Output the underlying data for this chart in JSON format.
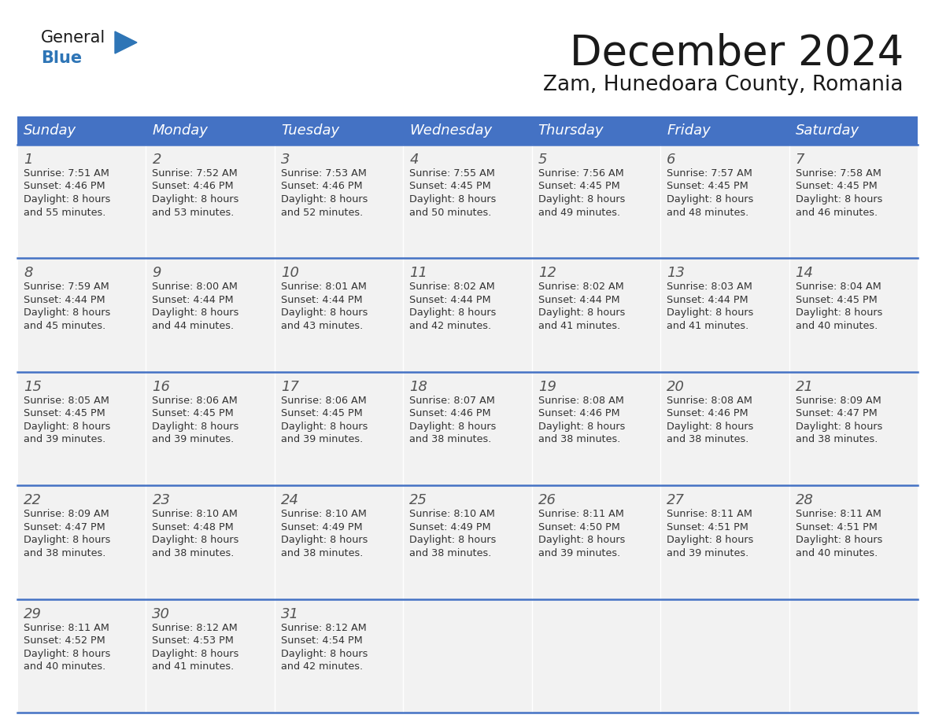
{
  "title": "December 2024",
  "subtitle": "Zam, Hunedoara County, Romania",
  "header_color": "#4472C4",
  "header_text_color": "#FFFFFF",
  "days_of_week": [
    "Sunday",
    "Monday",
    "Tuesday",
    "Wednesday",
    "Thursday",
    "Friday",
    "Saturday"
  ],
  "cell_bg": "#F2F2F2",
  "separator_color": "#4472C4",
  "title_color": "#1a1a1a",
  "subtitle_color": "#1a1a1a",
  "day_number_color": "#555555",
  "cell_text_color": "#333333",
  "logo_general_color": "#1a1a1a",
  "logo_blue_color": "#2E75B6",
  "calendar_data": [
    [
      {
        "day": 1,
        "sunrise": "7:51 AM",
        "sunset": "4:46 PM",
        "daylight": "8 hours and 55 minutes"
      },
      {
        "day": 2,
        "sunrise": "7:52 AM",
        "sunset": "4:46 PM",
        "daylight": "8 hours and 53 minutes"
      },
      {
        "day": 3,
        "sunrise": "7:53 AM",
        "sunset": "4:46 PM",
        "daylight": "8 hours and 52 minutes"
      },
      {
        "day": 4,
        "sunrise": "7:55 AM",
        "sunset": "4:45 PM",
        "daylight": "8 hours and 50 minutes"
      },
      {
        "day": 5,
        "sunrise": "7:56 AM",
        "sunset": "4:45 PM",
        "daylight": "8 hours and 49 minutes"
      },
      {
        "day": 6,
        "sunrise": "7:57 AM",
        "sunset": "4:45 PM",
        "daylight": "8 hours and 48 minutes"
      },
      {
        "day": 7,
        "sunrise": "7:58 AM",
        "sunset": "4:45 PM",
        "daylight": "8 hours and 46 minutes"
      }
    ],
    [
      {
        "day": 8,
        "sunrise": "7:59 AM",
        "sunset": "4:44 PM",
        "daylight": "8 hours and 45 minutes"
      },
      {
        "day": 9,
        "sunrise": "8:00 AM",
        "sunset": "4:44 PM",
        "daylight": "8 hours and 44 minutes"
      },
      {
        "day": 10,
        "sunrise": "8:01 AM",
        "sunset": "4:44 PM",
        "daylight": "8 hours and 43 minutes"
      },
      {
        "day": 11,
        "sunrise": "8:02 AM",
        "sunset": "4:44 PM",
        "daylight": "8 hours and 42 minutes"
      },
      {
        "day": 12,
        "sunrise": "8:02 AM",
        "sunset": "4:44 PM",
        "daylight": "8 hours and 41 minutes"
      },
      {
        "day": 13,
        "sunrise": "8:03 AM",
        "sunset": "4:44 PM",
        "daylight": "8 hours and 41 minutes"
      },
      {
        "day": 14,
        "sunrise": "8:04 AM",
        "sunset": "4:45 PM",
        "daylight": "8 hours and 40 minutes"
      }
    ],
    [
      {
        "day": 15,
        "sunrise": "8:05 AM",
        "sunset": "4:45 PM",
        "daylight": "8 hours and 39 minutes"
      },
      {
        "day": 16,
        "sunrise": "8:06 AM",
        "sunset": "4:45 PM",
        "daylight": "8 hours and 39 minutes"
      },
      {
        "day": 17,
        "sunrise": "8:06 AM",
        "sunset": "4:45 PM",
        "daylight": "8 hours and 39 minutes"
      },
      {
        "day": 18,
        "sunrise": "8:07 AM",
        "sunset": "4:46 PM",
        "daylight": "8 hours and 38 minutes"
      },
      {
        "day": 19,
        "sunrise": "8:08 AM",
        "sunset": "4:46 PM",
        "daylight": "8 hours and 38 minutes"
      },
      {
        "day": 20,
        "sunrise": "8:08 AM",
        "sunset": "4:46 PM",
        "daylight": "8 hours and 38 minutes"
      },
      {
        "day": 21,
        "sunrise": "8:09 AM",
        "sunset": "4:47 PM",
        "daylight": "8 hours and 38 minutes"
      }
    ],
    [
      {
        "day": 22,
        "sunrise": "8:09 AM",
        "sunset": "4:47 PM",
        "daylight": "8 hours and 38 minutes"
      },
      {
        "day": 23,
        "sunrise": "8:10 AM",
        "sunset": "4:48 PM",
        "daylight": "8 hours and 38 minutes"
      },
      {
        "day": 24,
        "sunrise": "8:10 AM",
        "sunset": "4:49 PM",
        "daylight": "8 hours and 38 minutes"
      },
      {
        "day": 25,
        "sunrise": "8:10 AM",
        "sunset": "4:49 PM",
        "daylight": "8 hours and 38 minutes"
      },
      {
        "day": 26,
        "sunrise": "8:11 AM",
        "sunset": "4:50 PM",
        "daylight": "8 hours and 39 minutes"
      },
      {
        "day": 27,
        "sunrise": "8:11 AM",
        "sunset": "4:51 PM",
        "daylight": "8 hours and 39 minutes"
      },
      {
        "day": 28,
        "sunrise": "8:11 AM",
        "sunset": "4:51 PM",
        "daylight": "8 hours and 40 minutes"
      }
    ],
    [
      {
        "day": 29,
        "sunrise": "8:11 AM",
        "sunset": "4:52 PM",
        "daylight": "8 hours and 40 minutes"
      },
      {
        "day": 30,
        "sunrise": "8:12 AM",
        "sunset": "4:53 PM",
        "daylight": "8 hours and 41 minutes"
      },
      {
        "day": 31,
        "sunrise": "8:12 AM",
        "sunset": "4:54 PM",
        "daylight": "8 hours and 42 minutes"
      },
      null,
      null,
      null,
      null
    ]
  ]
}
